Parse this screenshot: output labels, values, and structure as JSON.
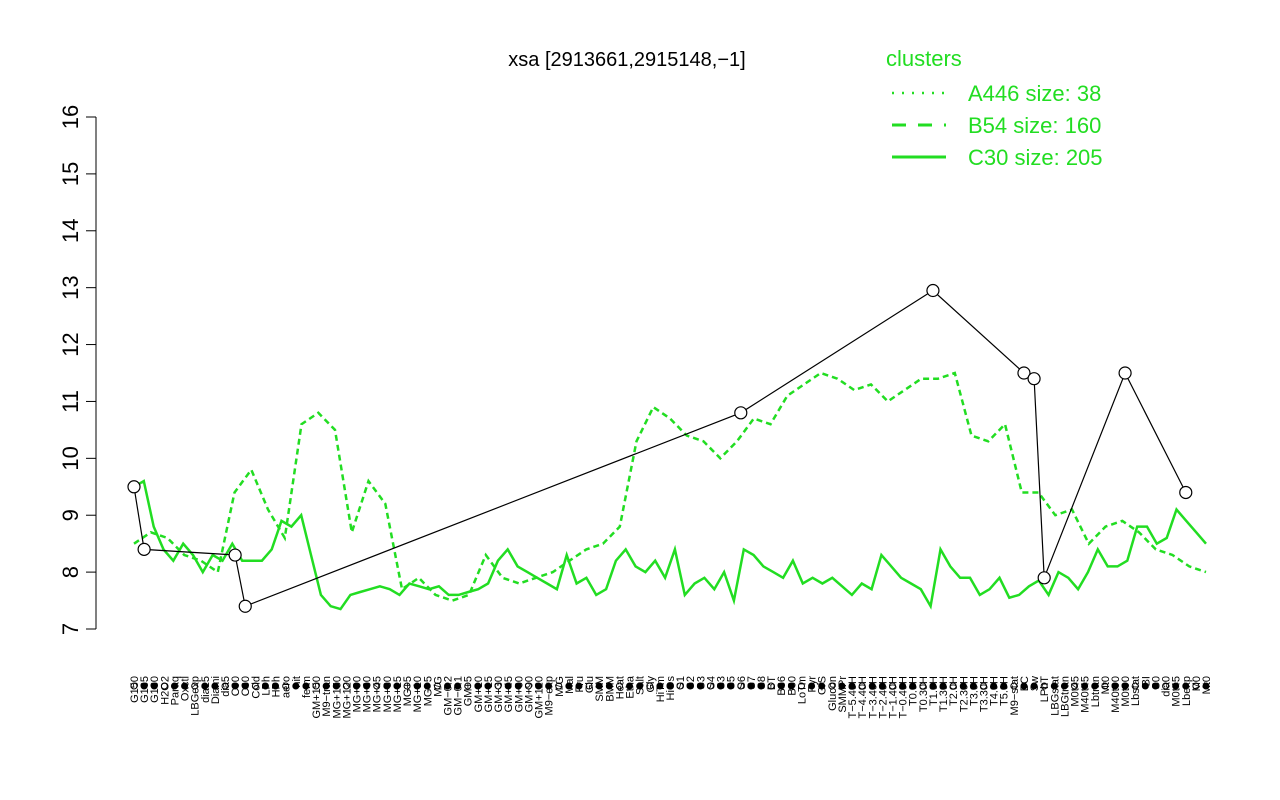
{
  "chart_data": {
    "type": "line",
    "title": "xsa [2913661,2915148,−1]",
    "xlabel": "",
    "ylabel": "",
    "ylim": [
      7,
      16
    ],
    "yticks": [
      "7",
      "8",
      "9",
      "10",
      "11",
      "12",
      "13",
      "14",
      "15",
      "16"
    ],
    "grid": false,
    "legend_position": "top-right",
    "legend": {
      "title": "clusters",
      "entries": [
        {
          "label": "A446 size: 38",
          "style": "dotted"
        },
        {
          "label": "B54 size: 160",
          "style": "dashed"
        },
        {
          "label": "C30 size: 205",
          "style": "solid"
        }
      ]
    },
    "colors": {
      "accent": "#22dd22",
      "line": "#000000",
      "point_fill": "#ffffff"
    },
    "x_tick_labels": [
      "G150",
      "G135",
      "G180",
      "H2O2",
      "Paraq",
      "Oxctl",
      "LBGexp",
      "dia15",
      "Diami",
      "dia5",
      "C90",
      "C30",
      "Cold",
      "LPh",
      "HPh",
      "aero",
      "nit",
      "ferm",
      "GM+150",
      "M9−tran",
      "MG+150",
      "MG+120",
      "MG+90",
      "MG+60",
      "MG+45",
      "MG+30",
      "MG+15",
      "MG+5",
      "MG+10",
      "MG−5",
      "M/G",
      "GM−0.2",
      "GM−0.1",
      "GM+5",
      "GM+10",
      "GM+15",
      "GM+30",
      "GM+45",
      "GM+60",
      "GM+90",
      "GM+120",
      "M9−exp",
      "M/G",
      "Mal",
      "Fru",
      "Glu",
      "SMM",
      "BMM",
      "Heat",
      "Etha",
      "Salt",
      "Gly",
      "HiTm",
      "HiOs",
      "S1",
      "S2",
      "S3",
      "S4",
      "S3",
      "S5",
      "S6",
      "S7",
      "S8",
      "BT",
      "B36",
      "B60",
      "LoTm",
      "Pyr",
      "G/S",
      "Glucon",
      "SMMPr",
      "T−5.40H",
      "T−4.40H",
      "T−3.40H",
      "T−2.40H",
      "T−1.40H",
      "T−0.40H",
      "T0.0H",
      "T0.30H",
      "T1.0H",
      "T1.30H",
      "T2.0H",
      "T2.30H",
      "T3.0H",
      "T3.30H",
      "T4.0H",
      "T5.0H",
      "M9−stat",
      "BC",
      "Sw",
      "LPhT",
      "LBGstat",
      "LBGtran",
      "M0t45",
      "M40t45",
      "Lbtran",
      "Mt0",
      "M40t90",
      "M0t90",
      "Lbstat",
      "BI",
      "S0",
      "dia0",
      "M0t45",
      "Lbexp",
      "M0",
      "Mt0"
    ],
    "series": [
      {
        "name": "C30 size: 205",
        "style": "solid",
        "values": [
          9.5,
          9.6,
          8.8,
          8.4,
          8.2,
          8.5,
          8.3,
          8.0,
          8.3,
          8.2,
          8.5,
          8.2,
          8.2,
          8.2,
          8.4,
          8.9,
          8.8,
          9.0,
          8.3,
          7.6,
          7.4,
          7.35,
          7.6,
          7.65,
          7.7,
          7.75,
          7.7,
          7.6,
          7.8,
          7.75,
          7.7,
          7.75,
          7.6,
          7.6,
          7.65,
          7.7,
          7.8,
          8.2,
          8.4,
          8.1,
          8.0,
          7.9,
          7.8,
          7.7,
          8.3,
          7.8,
          7.9,
          7.6,
          7.7,
          8.2,
          8.4,
          8.1,
          8.0,
          8.2,
          7.9,
          8.4,
          7.6,
          7.8,
          7.9,
          7.7,
          8.0,
          7.5,
          8.4,
          8.3,
          8.1,
          8.0,
          7.9,
          8.2,
          7.8,
          7.9,
          7.8,
          7.9,
          7.75,
          7.6,
          7.8,
          7.7,
          8.3,
          8.1,
          7.9,
          7.8,
          7.7,
          7.4,
          8.4,
          8.1,
          7.9,
          7.9,
          7.6,
          7.7,
          7.9,
          7.55,
          7.6,
          7.75,
          7.85,
          7.6,
          8.0,
          7.9,
          7.7,
          8.0,
          8.4,
          8.1,
          8.1,
          8.2,
          8.8,
          8.8,
          8.5,
          8.6,
          9.1,
          8.9,
          8.7,
          8.5
        ]
      },
      {
        "name": "B54 size: 160",
        "style": "dashed",
        "values": [
          8.5,
          8.7,
          8.6,
          8.3,
          8.2,
          8.0,
          9.4,
          9.8,
          9.1,
          8.6,
          10.6,
          10.8,
          10.5,
          8.7,
          9.6,
          9.2,
          7.7,
          7.9,
          7.6,
          7.5,
          7.6,
          8.3,
          7.9,
          7.8,
          7.9,
          8.0,
          8.2,
          8.4,
          8.5,
          8.8,
          10.3,
          10.9,
          10.7,
          10.4,
          10.3,
          10.0,
          10.3,
          10.7,
          10.6,
          11.1,
          11.3,
          11.5,
          11.4,
          11.2,
          11.3,
          11.0,
          11.2,
          11.4,
          11.4,
          11.5,
          10.4,
          10.3,
          10.6,
          9.4,
          9.4,
          9.0,
          9.1,
          8.5,
          8.8,
          8.9,
          8.7,
          8.4,
          8.3,
          8.1,
          8.0
        ]
      }
    ],
    "points": [
      {
        "label": "G150",
        "y": 9.5
      },
      {
        "label": "G135",
        "y": 8.4
      },
      {
        "label": "C90",
        "y": 8.3
      },
      {
        "label": "C30",
        "y": 7.4
      },
      {
        "label": "T1.0H",
        "y": 12.95
      },
      {
        "label": "BC",
        "y": 11.5
      },
      {
        "label": "M0t90",
        "y": 11.5
      },
      {
        "label": "Sw",
        "y": 11.4
      },
      {
        "label": "S6",
        "y": 10.8
      },
      {
        "label": "LPhT",
        "y": 7.9
      },
      {
        "label": "Lbexp",
        "y": 9.4
      }
    ]
  }
}
